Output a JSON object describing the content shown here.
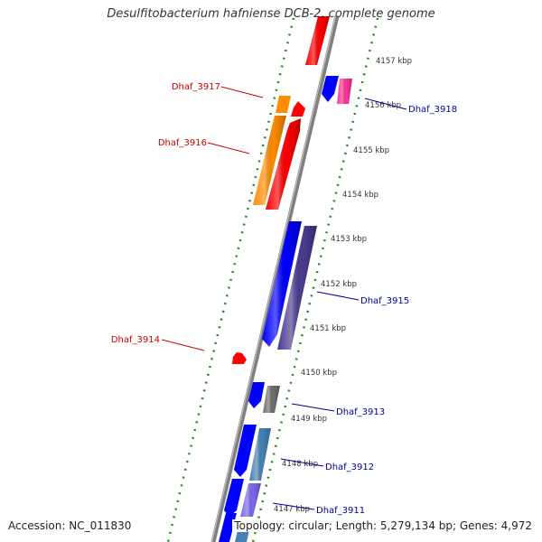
{
  "title": "Desulfitobacterium hafniense DCB-2, complete genome",
  "accession": "Accession: NC_011830",
  "topology": "Topology: circular; Length: 5,279,134 bp; Genes: 4,972",
  "colors": {
    "backbone": "#8c8c8c",
    "ticks": "#228b22",
    "forward_label": "#cc0000",
    "reverse_label": "#000099",
    "gene_red": "#ff0000",
    "gene_orange": "#ff8c00",
    "gene_blue": "#0000ff",
    "gene_pink": "#ff3399",
    "gene_purple": "#4b3b8f",
    "gene_gray": "#6e6e6e",
    "gene_steel": "#4682b4",
    "gene_lavender": "#7b68ee"
  },
  "kbp_labels": [
    "4157 kbp",
    "4156 kbp",
    "4155 kbp",
    "4154 kbp",
    "4153 kbp",
    "4152 kbp",
    "4151 kbp",
    "4150 kbp",
    "4149 kbp",
    "4148 kbp",
    "4147 kbp"
  ],
  "gene_labels": [
    {
      "text": "Dhaf_3917",
      "strand": "forward"
    },
    {
      "text": "Dhaf_3916",
      "strand": "forward"
    },
    {
      "text": "Dhaf_3914",
      "strand": "forward"
    },
    {
      "text": "Dhaf_3918",
      "strand": "reverse"
    },
    {
      "text": "Dhaf_3915",
      "strand": "reverse"
    },
    {
      "text": "Dhaf_3913",
      "strand": "reverse"
    },
    {
      "text": "Dhaf_3912",
      "strand": "reverse"
    },
    {
      "text": "Dhaf_3911",
      "strand": "reverse"
    }
  ]
}
